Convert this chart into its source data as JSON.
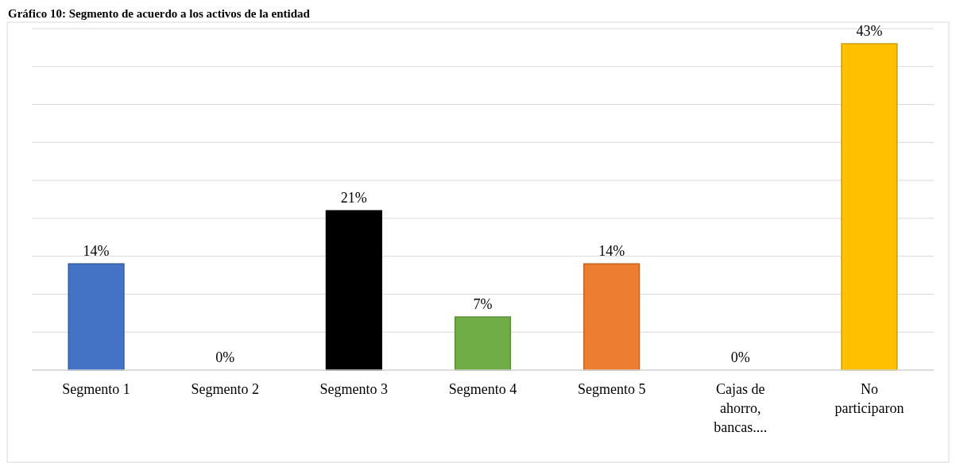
{
  "chart_data": {
    "type": "bar",
    "title": "Gráfico 10: Segmento de acuerdo a los activos de la entidad",
    "categories": [
      "Segmento 1",
      "Segmento 2",
      "Segmento 3",
      "Segmento 4",
      "Segmento 5",
      "Cajas de ahorro, bancas....",
      "No participaron"
    ],
    "values": [
      14,
      0,
      21,
      7,
      14,
      0,
      43
    ],
    "colors": [
      "#4472c4",
      "#a5a5a5",
      "#000000",
      "#70ad47",
      "#ed7d31",
      "#5b9bd5",
      "#ffc000"
    ],
    "value_labels": [
      "14%",
      "0%",
      "21%",
      "7%",
      "14%",
      "0%",
      "43%"
    ],
    "ylim": [
      0,
      45
    ],
    "yticks": [
      {
        "value": 0,
        "label": null
      },
      {
        "value": 5,
        "label": null
      },
      {
        "value": 10,
        "label": null
      },
      {
        "value": 15,
        "label": null
      },
      {
        "value": 20,
        "label": null
      },
      {
        "value": 25,
        "label": null
      },
      {
        "value": 30,
        "label": null
      },
      {
        "value": 35,
        "label": null
      },
      {
        "value": 40,
        "label": null
      },
      {
        "value": 45,
        "label": null
      }
    ],
    "grid": "y",
    "tick_labels": "x"
  }
}
